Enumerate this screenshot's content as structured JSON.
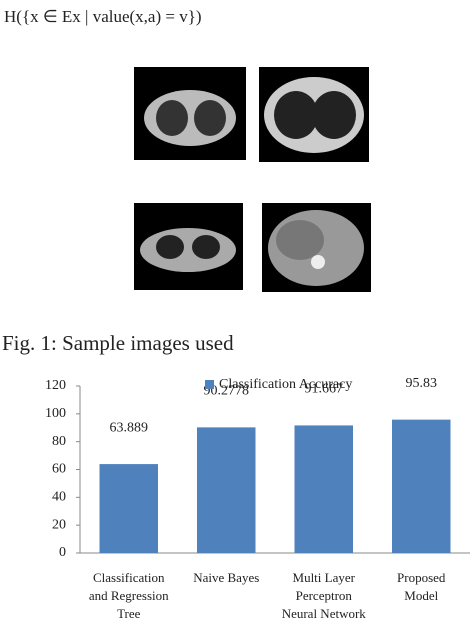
{
  "formula": "H({x ∈ Ex | value(x,a) = v})",
  "caption": "Fig. 1: Sample images used",
  "chart_data": {
    "type": "bar",
    "categories": [
      "Classification and Regression Tree",
      "Naive Bayes",
      "Multi Layer Perceptron Neural Network",
      "Proposed Model"
    ],
    "series": [
      {
        "name": "Classification Accuracy",
        "color": "#4f81bd",
        "values": [
          63.889,
          90.2778,
          91.667,
          95.83
        ]
      }
    ],
    "ylim": [
      0,
      120
    ],
    "yticks": [
      0,
      20,
      40,
      60,
      80,
      100,
      120
    ],
    "grid": false,
    "legend": "top"
  }
}
